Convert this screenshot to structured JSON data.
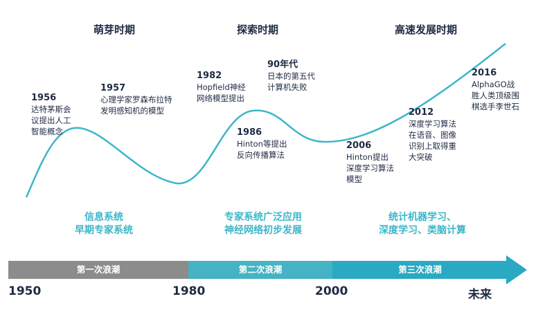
{
  "phases": [
    {
      "title": "萌芽时期"
    },
    {
      "title": "探索时期"
    },
    {
      "title": "高速发展时期"
    }
  ],
  "milestones": [
    {
      "year": "1956",
      "lines": [
        "达特茅斯会",
        "议提出人工",
        "智能概念"
      ]
    },
    {
      "year": "1957",
      "lines": [
        "心理学家罗森布拉特",
        "发明感知机的模型"
      ]
    },
    {
      "year": "1982",
      "lines": [
        "Hopfield神经",
        "网络模型提出"
      ]
    },
    {
      "year": "90年代",
      "lines": [
        "日本的第五代",
        "计算机失败"
      ]
    },
    {
      "year": "1986",
      "lines": [
        "Hinton等提出",
        "反向传播算法"
      ]
    },
    {
      "year": "2006",
      "lines": [
        "Hinton提出",
        "深度学习算法",
        "模型"
      ]
    },
    {
      "year": "2012",
      "lines": [
        "深度学习算法",
        "在语音、图像",
        "识别上取得重",
        "大突破"
      ]
    },
    {
      "year": "2016",
      "lines": [
        "AlphaGO战",
        "胜人类顶级围",
        "棋选手李世石"
      ]
    }
  ],
  "phase_summaries": [
    {
      "lines": [
        "信息系统",
        "早期专家系统"
      ]
    },
    {
      "lines": [
        "专家系统广泛应用",
        "神经网络初步发展"
      ]
    },
    {
      "lines": [
        "统计机器学习、",
        "深度学习、类脑计算"
      ]
    }
  ],
  "waves": [
    {
      "label": "第一次浪潮"
    },
    {
      "label": "第二次浪潮"
    },
    {
      "label": "第三次浪潮"
    }
  ],
  "axis_years": [
    "1950",
    "1980",
    "2000",
    "未来"
  ],
  "colors": {
    "curve": "#3cb6c8",
    "text_dark": "#1f2a44",
    "wave1": "#8c8c8c",
    "wave2": "#45b3c3",
    "wave3": "#29a9c2"
  }
}
